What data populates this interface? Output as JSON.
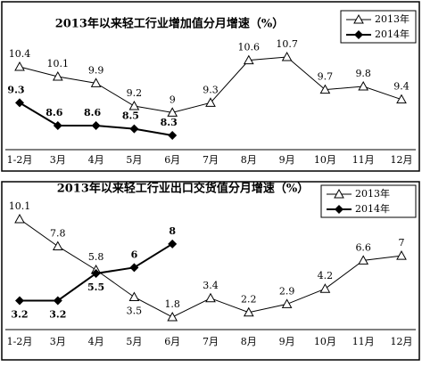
{
  "chart_data": [
    {
      "type": "line",
      "title": "2013年以来轻工行业增加值分月增速（%）",
      "categories": [
        "1-2月",
        "3月",
        "4月",
        "5月",
        "6月",
        "7月",
        "8月",
        "9月",
        "10月",
        "11月",
        "12月"
      ],
      "series": [
        {
          "name": "2013年",
          "color": "#000000",
          "values": [
            10.4,
            10.1,
            9.9,
            9.2,
            9,
            9.3,
            10.6,
            10.7,
            9.7,
            9.8,
            9.4
          ]
        },
        {
          "name": "2014年",
          "color": "#000000",
          "values": [
            9.3,
            8.6,
            8.6,
            8.5,
            8.3,
            null,
            null,
            null,
            null,
            null,
            null
          ]
        }
      ]
    },
    {
      "type": "line",
      "title": "2013年以来轻工行业出口交货值分月增速（%）",
      "categories": [
        "1-2月",
        "3月",
        "4月",
        "5月",
        "6月",
        "7月",
        "8月",
        "9月",
        "10月",
        "11月",
        "12月"
      ],
      "series": [
        {
          "name": "2013年",
          "color": "#000000",
          "values": [
            10.1,
            7.8,
            5.8,
            3.5,
            1.8,
            3.4,
            2.2,
            2.9,
            4.2,
            6.6,
            7
          ]
        },
        {
          "name": "2014年",
          "color": "#000000",
          "values": [
            3.2,
            3.2,
            5.5,
            6,
            8,
            null,
            null,
            null,
            null,
            null,
            null
          ]
        }
      ]
    }
  ]
}
